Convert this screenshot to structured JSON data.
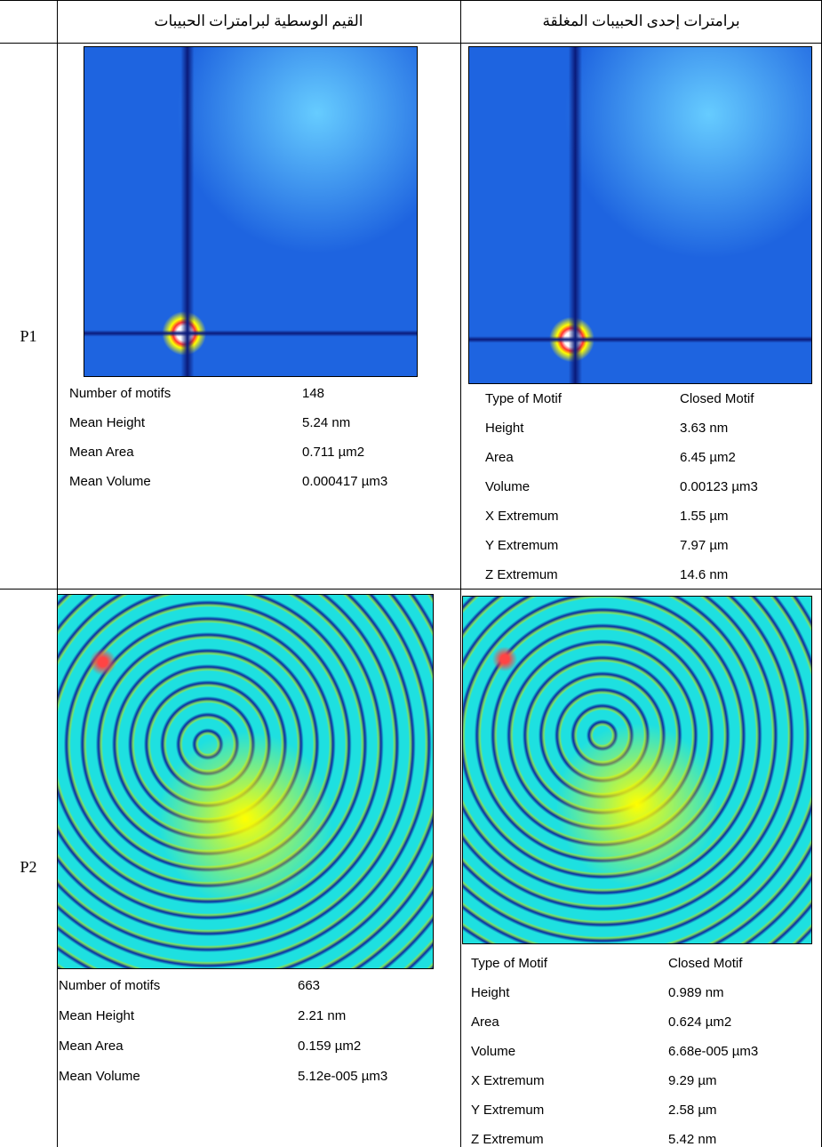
{
  "header": {
    "mean_column": "القيم الوسطية لبرامترات الحبيبات",
    "closed_column": "برامترات إحدى الحبيبات المغلقة"
  },
  "rows": [
    {
      "label": "P1",
      "mean_params": [
        [
          "Number of motifs",
          "148"
        ],
        [
          "Mean Height",
          "5.24 nm"
        ],
        [
          "Mean Area",
          "0.711 µm2"
        ],
        [
          "Mean Volume",
          "0.000417 µm3"
        ]
      ],
      "closed_params": [
        [
          "Type of Motif",
          "Closed Motif"
        ],
        [
          "Height",
          "3.63 nm"
        ],
        [
          "Area",
          "6.45 µm2"
        ],
        [
          "Volume",
          "0.00123 µm3"
        ],
        [
          "X Extremum",
          "1.55 µm"
        ],
        [
          "Y Extremum",
          "7.97 µm"
        ],
        [
          "Z Extremum",
          "14.6 nm"
        ]
      ]
    },
    {
      "label": "P2",
      "mean_params": [
        [
          "Number of motifs",
          "663"
        ],
        [
          "Mean Height",
          "2.21 nm"
        ],
        [
          "Mean Area",
          "0.159 µm2"
        ],
        [
          "Mean Volume",
          "5.12e-005 µm3"
        ]
      ],
      "closed_params": [
        [
          "Type of Motif",
          "Closed Motif"
        ],
        [
          "Height",
          "0.989 nm"
        ],
        [
          "Area",
          "0.624 µm2"
        ],
        [
          "Volume",
          "6.68e-005 µm3"
        ],
        [
          "X Extremum",
          "9.29 µm"
        ],
        [
          "Y Extremum",
          "2.58 µm"
        ],
        [
          "Z Extremum",
          "5.42 nm"
        ]
      ]
    }
  ]
}
